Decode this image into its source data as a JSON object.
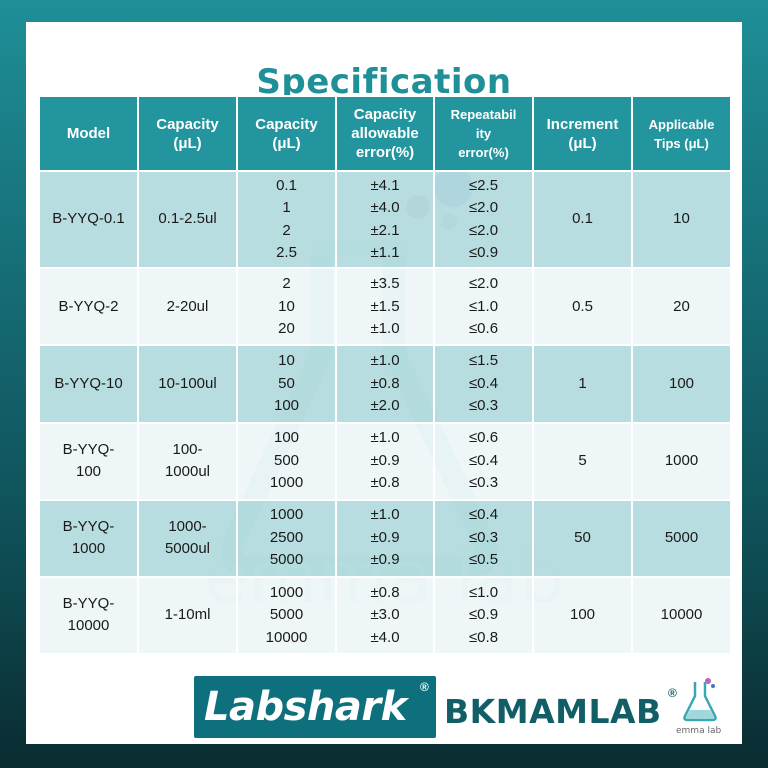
{
  "title": "Specification",
  "headers": [
    "Model",
    "Capacity (μL)",
    "Capacity (μL)",
    "Capacity allowable error(%)",
    "Repeatabil ity error(%)",
    "Increment (μL)",
    "Applicable Tips (μL)"
  ],
  "rows": [
    {
      "model": "B-YYQ-0.1",
      "range": "0.1-2.5ul",
      "capacity": [
        "0.1",
        "1",
        "2",
        "2.5"
      ],
      "allowable": [
        "±4.1",
        "±4.0",
        "±2.1",
        "±1.1"
      ],
      "repeat": [
        "≤2.5",
        "≤2.0",
        "≤2.0",
        "≤0.9"
      ],
      "increment": "0.1",
      "tips": "10"
    },
    {
      "model": "B-YYQ-2",
      "range": "2-20ul",
      "capacity": [
        "2",
        "10",
        "20"
      ],
      "allowable": [
        "±3.5",
        "±1.5",
        "±1.0"
      ],
      "repeat": [
        "≤2.0",
        "≤1.0",
        "≤0.6"
      ],
      "increment": "0.5",
      "tips": "20"
    },
    {
      "model": "B-YYQ-10",
      "range": "10-100ul",
      "capacity": [
        "10",
        "50",
        "100"
      ],
      "allowable": [
        "±1.0",
        "±0.8",
        "±2.0"
      ],
      "repeat": [
        "≤1.5",
        "≤0.4",
        "≤0.3"
      ],
      "increment": "1",
      "tips": "100"
    },
    {
      "model": "B-YYQ-100",
      "range": "100-1000ul",
      "capacity": [
        "100",
        "500",
        "1000"
      ],
      "allowable": [
        "±1.0",
        "±0.9",
        "±0.8"
      ],
      "repeat": [
        "≤0.6",
        "≤0.4",
        "≤0.3"
      ],
      "increment": "5",
      "tips": "1000"
    },
    {
      "model": "B-YYQ-1000",
      "range": "1000-5000ul",
      "capacity": [
        "1000",
        "2500",
        "5000"
      ],
      "allowable": [
        "±1.0",
        "±0.9",
        "±0.9"
      ],
      "repeat": [
        "≤0.4",
        "≤0.3",
        "≤0.5"
      ],
      "increment": "50",
      "tips": "5000"
    },
    {
      "model": "B-YYQ-10000",
      "range": "1-10ml",
      "capacity": [
        "1000",
        "5000",
        "10000"
      ],
      "allowable": [
        "±0.8",
        "±3.0",
        "±4.0"
      ],
      "repeat": [
        "≤1.0",
        "≤0.9",
        "≤0.8"
      ],
      "increment": "100",
      "tips": "10000"
    }
  ],
  "watermark": "emma lab",
  "logos": {
    "labshark": "Labshark",
    "bkmamlab": "BKMAMLAB",
    "emma": "emma lab",
    "registered": "®"
  },
  "colors": {
    "header": "#23959f",
    "row_dark": "#a8d6d9",
    "row_light": "#e9f4f5",
    "title": "#1f8f98",
    "brand_dark": "#0e6f7d"
  }
}
